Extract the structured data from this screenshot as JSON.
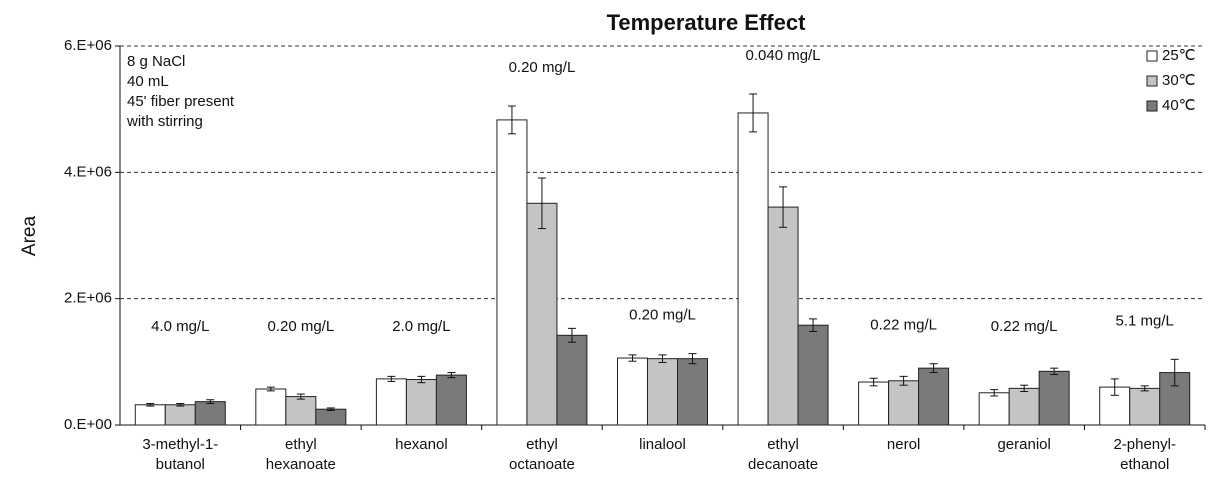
{
  "chart_data": {
    "type": "bar",
    "title": "Temperature Effect",
    "y_label": "Area",
    "categories": [
      "3-methyl-1-\nbutanol",
      "ethyl\nhexanoate",
      "hexanol",
      "ethyl\noctanoate",
      "linalool",
      "ethyl\ndecanoate",
      "nerol",
      "geraniol",
      "2-phenyl-\nethanol"
    ],
    "concentrations": [
      "4.0 mg/L",
      "0.20 mg/L",
      "2.0 mg/L",
      "0.20 mg/L",
      "0.20 mg/L",
      "0.040 mg/L",
      "0.22 mg/L",
      "0.22 mg/L",
      "5.1 mg/L"
    ],
    "conditions": [
      "8 g NaCl",
      "40 mL",
      "45' fiber present",
      "with stirring"
    ],
    "series": [
      {
        "name": "25℃",
        "color": "#ffffff",
        "values": [
          320000,
          570000,
          730000,
          4830000,
          1060000,
          4940000,
          680000,
          510000,
          600000
        ],
        "errors": [
          20000,
          30000,
          40000,
          220000,
          50000,
          300000,
          60000,
          50000,
          130000
        ]
      },
      {
        "name": "30℃",
        "color": "#c4c4c4",
        "values": [
          320000,
          450000,
          720000,
          3510000,
          1050000,
          3450000,
          700000,
          580000,
          580000
        ],
        "errors": [
          20000,
          40000,
          50000,
          400000,
          60000,
          320000,
          70000,
          50000,
          40000
        ]
      },
      {
        "name": "40℃",
        "color": "#7a7a7a",
        "values": [
          370000,
          250000,
          790000,
          1420000,
          1050000,
          1580000,
          900000,
          850000,
          830000
        ],
        "errors": [
          30000,
          20000,
          40000,
          110000,
          80000,
          100000,
          70000,
          50000,
          210000
        ]
      }
    ],
    "ylim": [
      0,
      6000000
    ],
    "yticks": [
      {
        "value": 0,
        "label": "0.E+00"
      },
      {
        "value": 2000000,
        "label": "2.E+06"
      },
      {
        "value": 4000000,
        "label": "4.E+06"
      },
      {
        "value": 6000000,
        "label": "6.E+06"
      }
    ],
    "grid": true,
    "legend": "top-right"
  }
}
